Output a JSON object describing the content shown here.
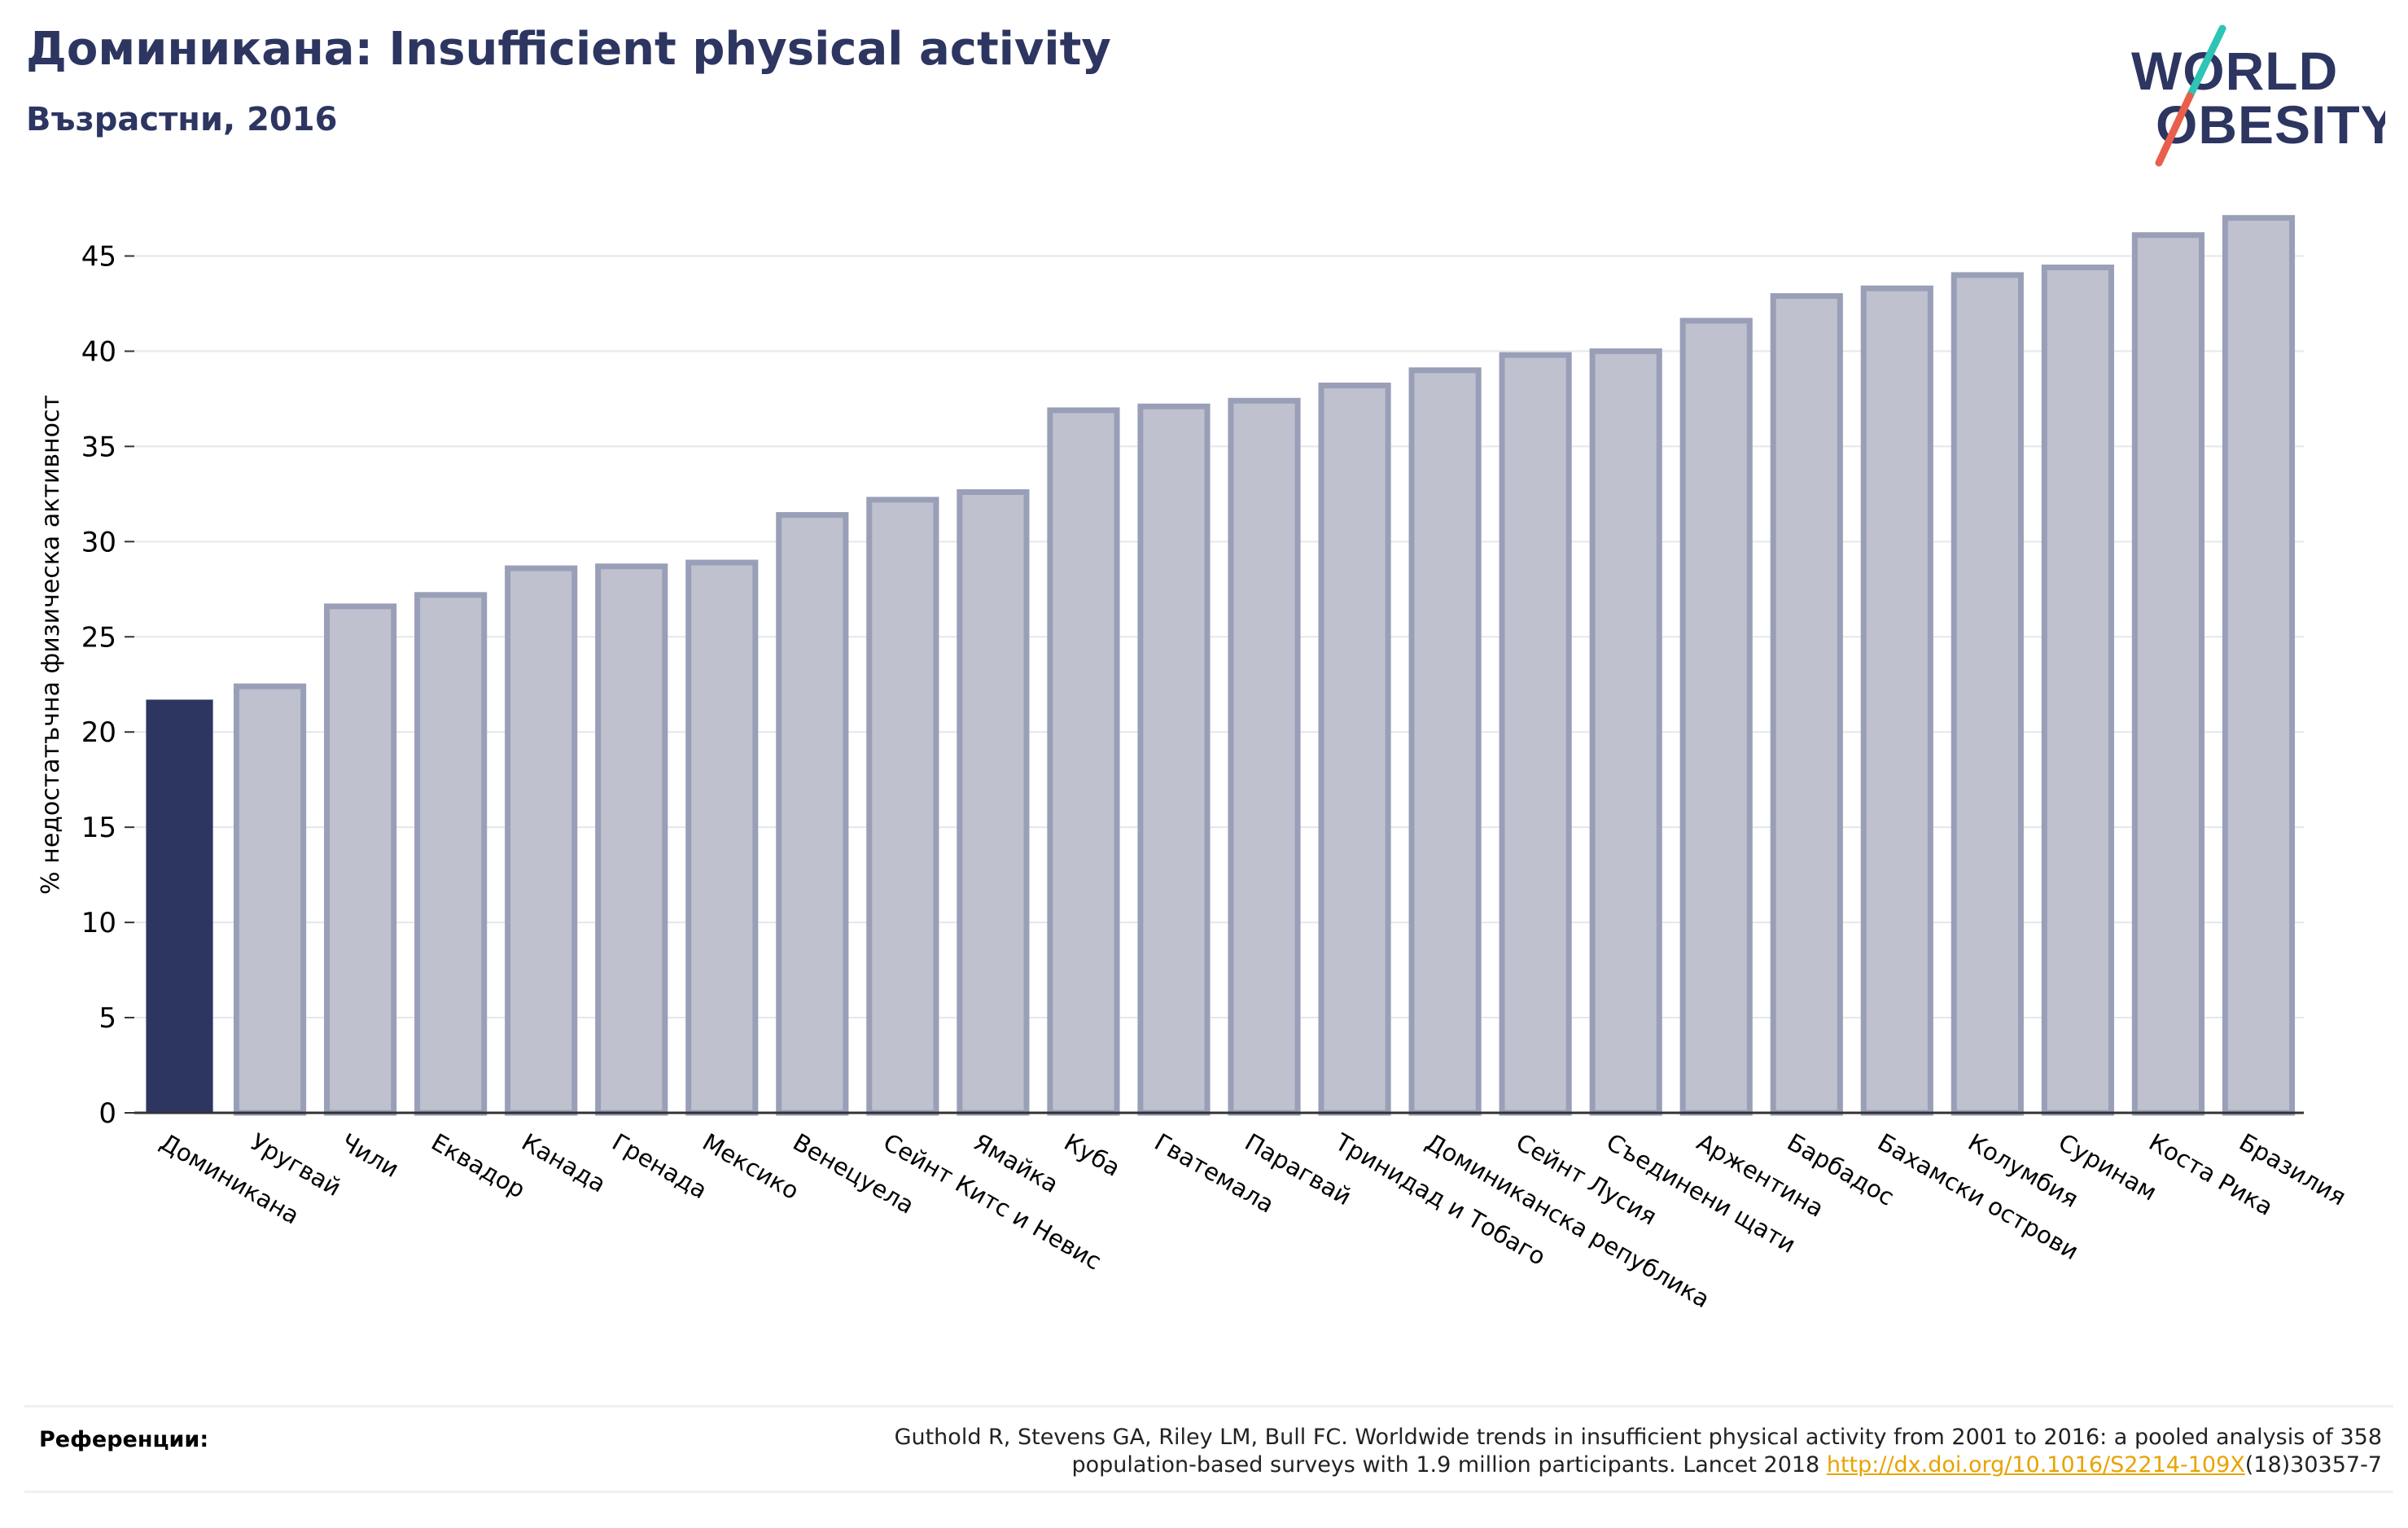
{
  "header": {
    "title": "Доминикана: Insufficient physical activity",
    "subtitle": "Възрастни, 2016"
  },
  "logo": {
    "line1": "WORLD",
    "line2": "OBESITY",
    "colors": {
      "text": "#2d3561",
      "slash_teal": "#2ec4b6",
      "slash_coral": "#e8604c"
    }
  },
  "references": {
    "label": "Референции:",
    "text_line1": "Guthold R, Stevens GA, Riley LM, Bull FC. Worldwide trends in insufficient physical activity from 2001 to 2016: a pooled analysis of 358",
    "text_line2_prefix": "population-based surveys with 1.9 million participants. Lancet 2018 ",
    "link": "http://dx.doi.org/10.1016/S2214-109X",
    "text_line2_suffix": "(18)30357-7"
  },
  "chart_data": {
    "type": "bar",
    "ylabel": "% недостатъчна физическа активност",
    "ylim": [
      0,
      47.5
    ],
    "yticks": [
      0,
      5,
      10,
      15,
      20,
      25,
      30,
      35,
      40,
      45
    ],
    "grid": true,
    "highlight_index": 0,
    "colors": {
      "highlight": "#2d3561",
      "bar_fill": "#bfc1cf",
      "bar_stroke": "#9a9fb8"
    },
    "categories": [
      "Доминикана",
      "Уругвай",
      "Чили",
      "Еквадор",
      "Канада",
      "Гренада",
      "Мексико",
      "Венецуела",
      "Сейнт Китс и Невис",
      "Ямайка",
      "Куба",
      "Гватемала",
      "Парагвай",
      "Тринидад и Тобаго",
      "Доминиканска република",
      "Сейнт Лусия",
      "Съединени щати",
      "Аржентина",
      "Барбадос",
      "Бахамски острови",
      "Колумбия",
      "Суринам",
      "Коста Рика",
      "Бразилия"
    ],
    "values": [
      21.7,
      22.4,
      26.6,
      27.2,
      28.6,
      28.7,
      28.9,
      31.4,
      32.2,
      32.6,
      36.9,
      37.1,
      37.4,
      38.2,
      39.0,
      39.8,
      40.0,
      41.6,
      42.9,
      43.3,
      44.0,
      44.4,
      46.1,
      47.0
    ]
  }
}
